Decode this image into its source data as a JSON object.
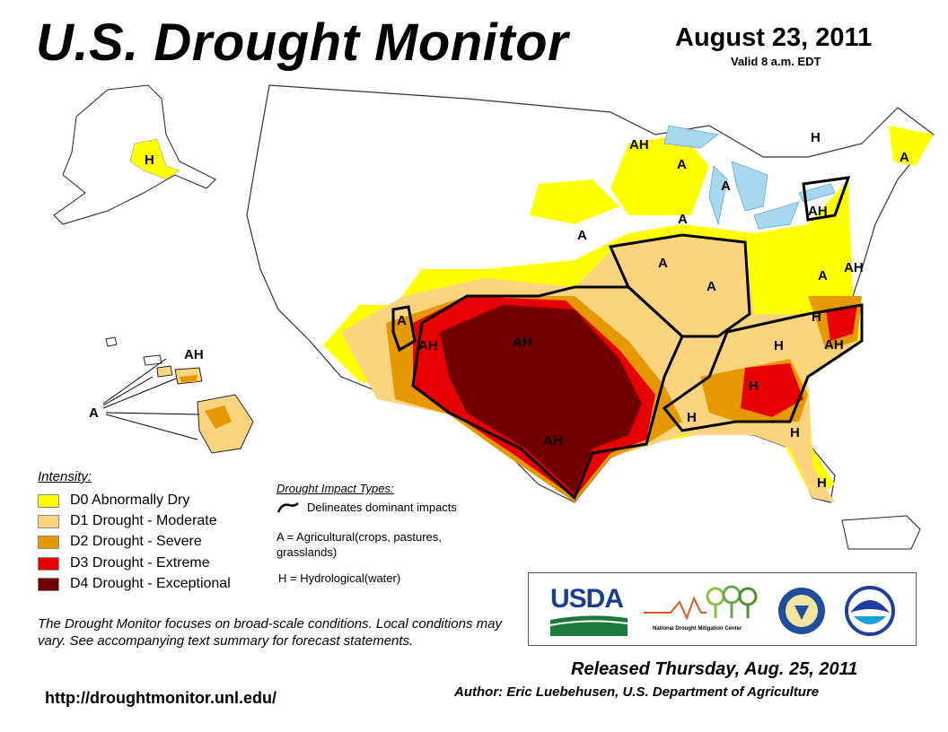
{
  "header": {
    "title": "U.S. Drought Monitor",
    "date": "August 23, 2011",
    "valid": "Valid 8 a.m. EDT"
  },
  "legend": {
    "heading": "Intensity:",
    "items": [
      {
        "code": "D0",
        "label": "D0 Abnormally Dry",
        "color": "#ffff00"
      },
      {
        "code": "D1",
        "label": "D1 Drought - Moderate",
        "color": "#fcd37f"
      },
      {
        "code": "D2",
        "label": "D2 Drought - Severe",
        "color": "#e69800"
      },
      {
        "code": "D3",
        "label": "D3 Drought - Extreme",
        "color": "#e60000"
      },
      {
        "code": "D4",
        "label": "D4 Drought - Exceptional",
        "color": "#730000"
      }
    ]
  },
  "impact_types": {
    "heading": "Drought Impact Types:",
    "line_label": "Delineates dominant impacts",
    "agricultural": "A = Agricultural(crops, pastures, grasslands)",
    "hydrological": "H = Hydrological(water)"
  },
  "map": {
    "labels": [
      "H",
      "AH",
      "A",
      "AH",
      "A",
      "A",
      "A",
      "A",
      "A",
      "H",
      "A",
      "A",
      "AH",
      "A",
      "AH",
      "AH",
      "A",
      "H",
      "AH",
      "H",
      "AH",
      "H",
      "H",
      "H",
      "AH",
      "H"
    ]
  },
  "note": "The Drought Monitor focuses on broad-scale conditions. Local conditions may vary. See accompanying text summary for forecast statements.",
  "url": "http://droughtmonitor.unl.edu/",
  "logos": {
    "usda": "USDA",
    "ndmc": "National Drought Mitigation Center"
  },
  "footer": {
    "released": "Released Thursday, Aug. 25, 2011",
    "author": "Author: Eric Luebehusen, U.S. Department of Agriculture"
  }
}
